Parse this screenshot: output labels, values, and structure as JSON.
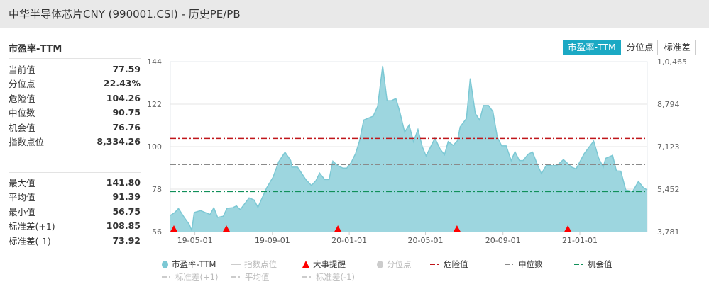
{
  "window": {
    "title": "中华半导体芯片CNY (990001.CSI) - 历史PE/PB"
  },
  "panel": {
    "title": "市盈率-TTM"
  },
  "stats_top": [
    {
      "label": "当前值",
      "value": "77.59"
    },
    {
      "label": "分位点",
      "value": "22.43%"
    },
    {
      "label": "危险值",
      "value": "104.26"
    },
    {
      "label": "中位数",
      "value": "90.75"
    },
    {
      "label": "机会值",
      "value": "76.76"
    },
    {
      "label": "指数点位",
      "value": "8,334.26"
    }
  ],
  "stats_bottom": [
    {
      "label": "最大值",
      "value": "141.80"
    },
    {
      "label": "平均值",
      "value": "91.39"
    },
    {
      "label": "最小值",
      "value": "56.75"
    },
    {
      "label": "标准差(+1)",
      "value": "108.85"
    },
    {
      "label": "标准差(-1)",
      "value": "73.92"
    }
  ],
  "toggle": {
    "buttons": [
      {
        "label": "市盈率-TTM",
        "active": true
      },
      {
        "label": "分位点",
        "active": false
      },
      {
        "label": "标准差",
        "active": false
      }
    ]
  },
  "colors": {
    "accent": "#1ba9c4",
    "area": "#9dd6df",
    "area_line": "#7cc8d4",
    "danger": "#c0161b",
    "median": "#8a8a8a",
    "chance": "#11905a",
    "event": "#ff0000"
  },
  "legend": {
    "row1": [
      {
        "label": "市盈率-TTM",
        "icon": "circle",
        "color": "#7cc8d4",
        "enabled": true
      },
      {
        "label": "指数点位",
        "icon": "line",
        "color": "#ccc",
        "enabled": false
      },
      {
        "label": "大事提醒",
        "icon": "triangle",
        "color": "#ff0000",
        "enabled": true
      },
      {
        "label": "分位点",
        "icon": "circle",
        "color": "#ccc",
        "enabled": false
      },
      {
        "label": "危险值",
        "icon": "dashdot",
        "color": "#c0161b",
        "enabled": true
      },
      {
        "label": "中位数",
        "icon": "dashdot",
        "color": "#8a8a8a",
        "enabled": true
      },
      {
        "label": "机会值",
        "icon": "dashdot",
        "color": "#11905a",
        "enabled": true
      }
    ],
    "row2": [
      {
        "label": "标准差(+1)",
        "icon": "dashdot",
        "color": "#ccc",
        "enabled": false
      },
      {
        "label": "平均值",
        "icon": "dashdot",
        "color": "#ccc",
        "enabled": false
      },
      {
        "label": "标准差(-1)",
        "icon": "dashdot",
        "color": "#ccc",
        "enabled": false
      }
    ]
  },
  "chart_data": {
    "type": "area",
    "x_range": [
      "2019-03-23",
      "2021-04-18"
    ],
    "x_ticks": [
      "19-05-01",
      "19-09-01",
      "20-01-01",
      "20-05-01",
      "20-09-01",
      "21-01-01"
    ],
    "x_tick_dates": [
      "2019-05-01",
      "2019-09-01",
      "2020-01-01",
      "2020-05-01",
      "2020-09-01",
      "2021-01-01"
    ],
    "y_left": {
      "range": [
        56,
        144
      ],
      "ticks": [
        "144",
        "122",
        "100",
        "78",
        "56"
      ]
    },
    "y_right": {
      "ticks": [
        "1,0,465",
        "8,794",
        "7,123",
        "5,452",
        "3,781"
      ]
    },
    "grid": true,
    "reference_lines": [
      {
        "name": "危险值",
        "value": 104.26,
        "color": "#c0161b"
      },
      {
        "name": "中位数",
        "value": 90.75,
        "color": "#8a8a8a"
      },
      {
        "name": "机会值",
        "value": 76.76,
        "color": "#11905a"
      }
    ],
    "events": [
      "2019-03-23",
      "2019-06-20",
      "2019-12-14",
      "2020-06-20",
      "2020-12-13"
    ],
    "series": [
      {
        "name": "市盈率-TTM",
        "points": [
          [
            "2019-03-23",
            64.4
          ],
          [
            "2019-03-30",
            65.9
          ],
          [
            "2019-04-05",
            68.0
          ],
          [
            "2019-04-14",
            63.4
          ],
          [
            "2019-04-22",
            59.8
          ],
          [
            "2019-04-26",
            56.75
          ],
          [
            "2019-04-30",
            65.9
          ],
          [
            "2019-05-10",
            66.9
          ],
          [
            "2019-05-25",
            64.9
          ],
          [
            "2019-05-31",
            68.4
          ],
          [
            "2019-06-06",
            63.4
          ],
          [
            "2019-06-15",
            64.0
          ],
          [
            "2019-06-21",
            68.1
          ],
          [
            "2019-06-30",
            68.4
          ],
          [
            "2019-07-06",
            69.3
          ],
          [
            "2019-07-12",
            67.4
          ],
          [
            "2019-07-26",
            73.5
          ],
          [
            "2019-08-03",
            72.4
          ],
          [
            "2019-08-09",
            68.6
          ],
          [
            "2019-08-23",
            78.7
          ],
          [
            "2019-09-02",
            84.2
          ],
          [
            "2019-09-11",
            92.2
          ],
          [
            "2019-09-21",
            97.1
          ],
          [
            "2019-09-30",
            92.8
          ],
          [
            "2019-10-02",
            89.4
          ],
          [
            "2019-10-11",
            89.4
          ],
          [
            "2019-10-24",
            83.0
          ],
          [
            "2019-11-02",
            79.9
          ],
          [
            "2019-11-09",
            82.4
          ],
          [
            "2019-11-15",
            86.3
          ],
          [
            "2019-11-23",
            83.0
          ],
          [
            "2019-11-30",
            83.0
          ],
          [
            "2019-12-06",
            92.5
          ],
          [
            "2019-12-14",
            90.1
          ],
          [
            "2019-12-22",
            88.9
          ],
          [
            "2019-12-28",
            88.9
          ],
          [
            "2020-01-04",
            91.8
          ],
          [
            "2020-01-11",
            96.4
          ],
          [
            "2020-01-17",
            102.6
          ],
          [
            "2020-01-24",
            113.8
          ],
          [
            "2020-02-08",
            115.8
          ],
          [
            "2020-02-15",
            120.9
          ],
          [
            "2020-02-23",
            141.8
          ],
          [
            "2020-03-01",
            123.8
          ],
          [
            "2020-03-08",
            123.8
          ],
          [
            "2020-03-15",
            124.9
          ],
          [
            "2020-03-21",
            118.4
          ],
          [
            "2020-03-29",
            107.5
          ],
          [
            "2020-04-05",
            111.2
          ],
          [
            "2020-04-12",
            102.6
          ],
          [
            "2020-04-19",
            108.9
          ],
          [
            "2020-04-26",
            99.9
          ],
          [
            "2020-05-02",
            95.2
          ],
          [
            "2020-05-16",
            104.4
          ],
          [
            "2020-05-24",
            98.9
          ],
          [
            "2020-05-31",
            95.8
          ],
          [
            "2020-06-06",
            102.6
          ],
          [
            "2020-06-14",
            100.7
          ],
          [
            "2020-06-21",
            103.2
          ],
          [
            "2020-06-25",
            110.2
          ],
          [
            "2020-07-05",
            114.6
          ],
          [
            "2020-07-11",
            135.3
          ],
          [
            "2020-07-19",
            117.2
          ],
          [
            "2020-07-26",
            113.8
          ],
          [
            "2020-08-01",
            121.3
          ],
          [
            "2020-08-09",
            121.3
          ],
          [
            "2020-08-16",
            118.2
          ],
          [
            "2020-08-23",
            105.0
          ],
          [
            "2020-08-30",
            100.4
          ],
          [
            "2020-09-06",
            100.4
          ],
          [
            "2020-09-14",
            92.8
          ],
          [
            "2020-09-20",
            97.4
          ],
          [
            "2020-09-27",
            92.8
          ],
          [
            "2020-10-03",
            92.8
          ],
          [
            "2020-10-11",
            96.1
          ],
          [
            "2020-10-18",
            97.2
          ],
          [
            "2020-10-26",
            90.4
          ],
          [
            "2020-11-01",
            86.1
          ],
          [
            "2020-11-09",
            90.4
          ],
          [
            "2020-11-19",
            90.1
          ],
          [
            "2020-11-26",
            90.4
          ],
          [
            "2020-12-06",
            93.3
          ],
          [
            "2020-12-19",
            89.4
          ],
          [
            "2020-12-26",
            88.5
          ],
          [
            "2021-01-08",
            96.4
          ],
          [
            "2021-01-23",
            102.9
          ],
          [
            "2021-01-31",
            94.0
          ],
          [
            "2021-02-07",
            89.4
          ],
          [
            "2021-02-11",
            94.0
          ],
          [
            "2021-02-22",
            95.5
          ],
          [
            "2021-02-28",
            87.5
          ],
          [
            "2021-03-07",
            87.3
          ],
          [
            "2021-03-15",
            77.5
          ],
          [
            "2021-03-26",
            76.9
          ],
          [
            "2021-04-04",
            82.0
          ],
          [
            "2021-04-12",
            78.7
          ],
          [
            "2021-04-18",
            77.59
          ]
        ]
      }
    ]
  }
}
